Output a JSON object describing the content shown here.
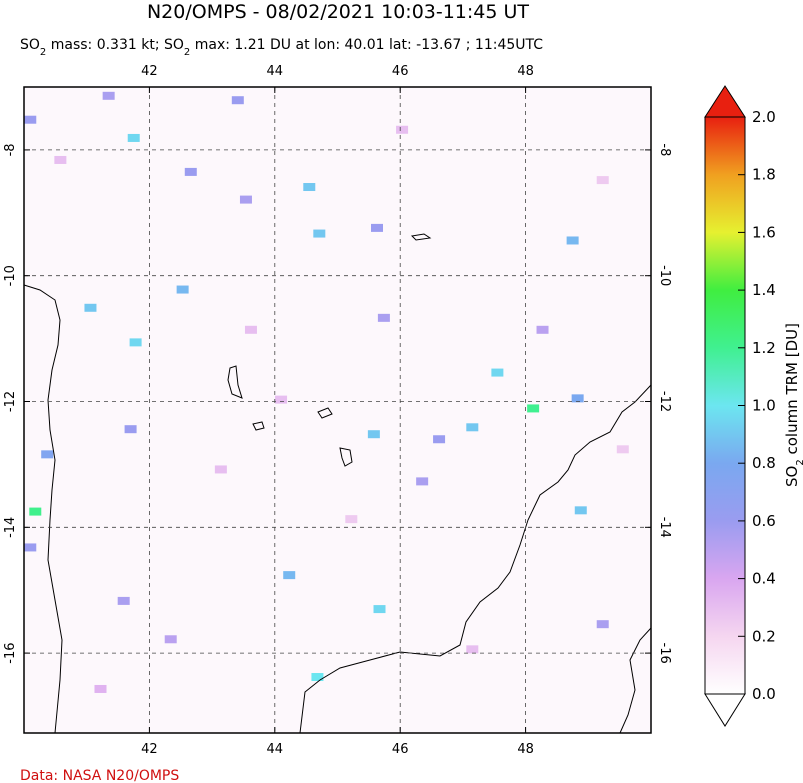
{
  "chart_data": {
    "type": "map",
    "title": "N20/OMPS - 08/02/2021 10:03-11:45 UT",
    "subtitle": [
      "SO",
      "2",
      " mass: 0.331 kt; SO",
      "2",
      " max: 1.21 DU at lon: 40.01 lat: -13.67 ; 11:45UTC"
    ],
    "xlim": [
      40,
      50
    ],
    "ylim": [
      -17.27,
      -7
    ],
    "xticks": [
      42,
      44,
      46,
      48
    ],
    "yticks": [
      -8,
      -10,
      -12,
      -14,
      -16
    ],
    "grid": true,
    "colorbar": {
      "label": [
        "SO",
        "2",
        " column TRM [DU]"
      ],
      "lim": [
        0,
        2
      ],
      "ticks": [
        {
          "value": 0,
          "label": "0.0"
        },
        {
          "value": 0.2,
          "label": "0.2"
        },
        {
          "value": 0.4,
          "label": "0.4"
        },
        {
          "value": 0.6,
          "label": "0.6"
        },
        {
          "value": 0.8,
          "label": "0.8"
        },
        {
          "value": 1,
          "label": "1.0"
        },
        {
          "value": 1.2,
          "label": "1.2"
        },
        {
          "value": 1.4,
          "label": "1.4"
        },
        {
          "value": 1.6,
          "label": "1.6"
        },
        {
          "value": 1.8,
          "label": "1.8"
        },
        {
          "value": 2,
          "label": "2.0"
        }
      ],
      "colors": [
        "#ffffff",
        "#f5d6f0",
        "#d9a6f0",
        "#9a9cf0",
        "#7aa8f0",
        "#6ce6f0",
        "#40f090",
        "#40ee40",
        "#e6f030",
        "#f0a020",
        "#e82010"
      ]
    },
    "cells": [
      {
        "lon": 41.75,
        "lat": -7.81,
        "value": 0.95
      },
      {
        "lon": 44.55,
        "lat": -8.59,
        "value": 0.9
      },
      {
        "lon": 44.71,
        "lat": -9.33,
        "value": 0.9
      },
      {
        "lon": 42.53,
        "lat": -10.22,
        "value": 0.85
      },
      {
        "lon": 41.06,
        "lat": -10.51,
        "value": 0.9
      },
      {
        "lon": 41.78,
        "lat": -11.06,
        "value": 0.95
      },
      {
        "lon": 47.55,
        "lat": -11.54,
        "value": 0.95
      },
      {
        "lon": 48.12,
        "lat": -12.11,
        "value": 1.2
      },
      {
        "lon": 47.15,
        "lat": -12.41,
        "value": 0.9
      },
      {
        "lon": 45.58,
        "lat": -12.52,
        "value": 0.9
      },
      {
        "lon": 48.83,
        "lat": -11.95,
        "value": 0.8
      },
      {
        "lon": 40.18,
        "lat": -13.75,
        "value": 1.21
      },
      {
        "lon": 40.37,
        "lat": -12.84,
        "value": 0.75
      },
      {
        "lon": 44.23,
        "lat": -14.76,
        "value": 0.85
      },
      {
        "lon": 45.67,
        "lat": -15.3,
        "value": 0.95
      },
      {
        "lon": 44.68,
        "lat": -16.38,
        "value": 1.0
      },
      {
        "lon": 48.88,
        "lat": -13.73,
        "value": 0.9
      },
      {
        "lon": 48.75,
        "lat": -9.44,
        "value": 0.85
      },
      {
        "lon": 40.1,
        "lat": -7.52,
        "value": 0.6
      },
      {
        "lon": 41.35,
        "lat": -7.14,
        "value": 0.55
      },
      {
        "lon": 43.41,
        "lat": -7.21,
        "value": 0.6
      },
      {
        "lon": 42.66,
        "lat": -8.35,
        "value": 0.6
      },
      {
        "lon": 43.54,
        "lat": -8.79,
        "value": 0.55
      },
      {
        "lon": 45.63,
        "lat": -9.24,
        "value": 0.6
      },
      {
        "lon": 45.74,
        "lat": -10.67,
        "value": 0.55
      },
      {
        "lon": 41.7,
        "lat": -12.44,
        "value": 0.6
      },
      {
        "lon": 46.62,
        "lat": -12.6,
        "value": 0.6
      },
      {
        "lon": 41.59,
        "lat": -15.17,
        "value": 0.55
      },
      {
        "lon": 40.1,
        "lat": -14.32,
        "value": 0.6
      },
      {
        "lon": 42.34,
        "lat": -15.78,
        "value": 0.5
      },
      {
        "lon": 49.23,
        "lat": -15.54,
        "value": 0.55
      },
      {
        "lon": 48.27,
        "lat": -10.86,
        "value": 0.5
      },
      {
        "lon": 46.35,
        "lat": -13.27,
        "value": 0.55
      },
      {
        "lon": 40.58,
        "lat": -8.16,
        "value": 0.3
      },
      {
        "lon": 43.62,
        "lat": -10.86,
        "value": 0.3
      },
      {
        "lon": 45.22,
        "lat": -13.87,
        "value": 0.25
      },
      {
        "lon": 47.15,
        "lat": -15.94,
        "value": 0.3
      },
      {
        "lon": 49.23,
        "lat": -8.48,
        "value": 0.25
      },
      {
        "lon": 43.14,
        "lat": -13.08,
        "value": 0.3
      },
      {
        "lon": 41.22,
        "lat": -16.57,
        "value": 0.35
      },
      {
        "lon": 46.03,
        "lat": -7.68,
        "value": 0.3
      },
      {
        "lon": 49.55,
        "lat": -12.76,
        "value": 0.25
      },
      {
        "lon": 44.1,
        "lat": -11.97,
        "value": 0.3
      }
    ],
    "credit": "Data: NASA N20/OMPS"
  }
}
